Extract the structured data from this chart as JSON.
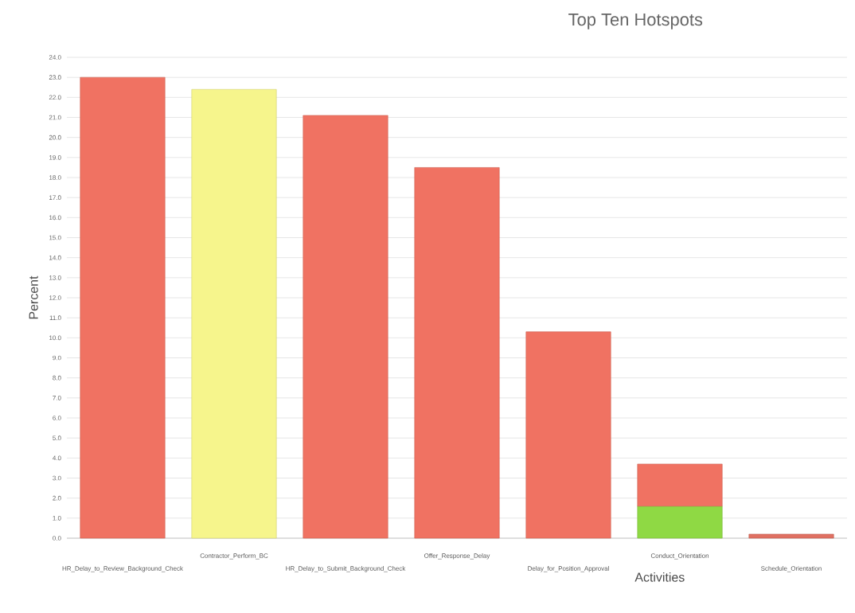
{
  "chart_data": {
    "type": "bar",
    "title": "Top Ten Hotspots",
    "xlabel": "Activities",
    "ylabel": "Percent",
    "stacked": true,
    "grid": "y",
    "categories": [
      "HR_Delay_to_Review_Background_Check",
      "Contractor_Perform_BC",
      "HR_Delay_to_Submit_Background_Check",
      "Offer_Response_Delay",
      "Delay_for_Position_Approval",
      "Conduct_Orientation",
      "Schedule_Orientation"
    ],
    "series": [
      {
        "colors": [
          "#f07262",
          "#f6f58c",
          "#f07262",
          "#f07262",
          "#f07262",
          "#8fd944",
          "#e07062"
        ],
        "values": [
          23.0,
          22.4,
          21.1,
          18.5,
          10.3,
          1.6,
          0.2
        ]
      },
      {
        "colors": [
          null,
          null,
          null,
          null,
          null,
          "#f07262",
          null
        ],
        "values": [
          null,
          null,
          null,
          null,
          null,
          2.1,
          null
        ]
      }
    ],
    "ylim": [
      0,
      24
    ],
    "yticks": [
      {
        "value": 0,
        "label": "0.0"
      },
      {
        "value": 1,
        "label": "1.0"
      },
      {
        "value": 2,
        "label": "2.0"
      },
      {
        "value": 3,
        "label": "3.0"
      },
      {
        "value": 4,
        "label": "4.0"
      },
      {
        "value": 5,
        "label": "5.0"
      },
      {
        "value": 6,
        "label": "6.0"
      },
      {
        "value": 7,
        "label": "7.0"
      },
      {
        "value": 8,
        "label": "8.0"
      },
      {
        "value": 9,
        "label": "9.0"
      },
      {
        "value": 10,
        "label": "10.0"
      },
      {
        "value": 11,
        "label": "11.0"
      },
      {
        "value": 12,
        "label": "12.0"
      },
      {
        "value": 13,
        "label": "13.0"
      },
      {
        "value": 14,
        "label": "14.0"
      },
      {
        "value": 15,
        "label": "15.0"
      },
      {
        "value": 16,
        "label": "16.0"
      },
      {
        "value": 17,
        "label": "17.0"
      },
      {
        "value": 18,
        "label": "18.0"
      },
      {
        "value": 19,
        "label": "19.0"
      },
      {
        "value": 20,
        "label": "20.0"
      },
      {
        "value": 21,
        "label": "21.0"
      },
      {
        "value": 22,
        "label": "22.0"
      },
      {
        "value": 23,
        "label": "23.0"
      },
      {
        "value": 24,
        "label": "24.0"
      }
    ]
  }
}
